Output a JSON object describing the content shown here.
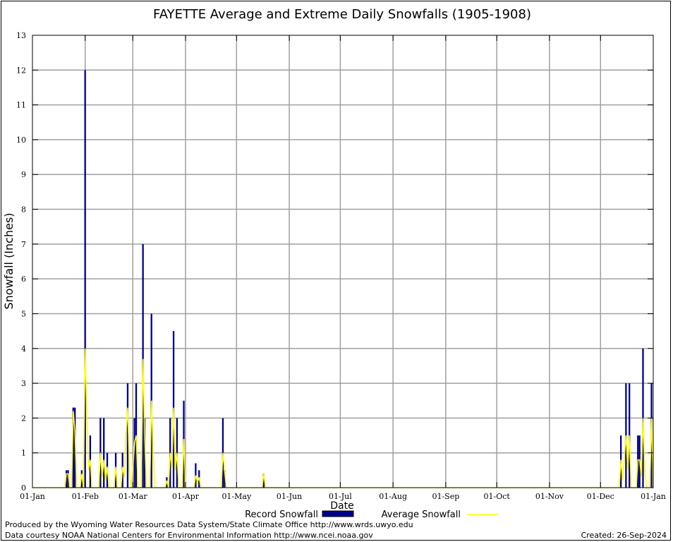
{
  "chart_data": {
    "type": "bar",
    "title": "FAYETTE Average and Extreme Daily Snowfalls (1905-1908)",
    "xlabel": "Date",
    "ylabel": "Snowfall (Inches)",
    "ylim": [
      0,
      13
    ],
    "yticks": [
      "0",
      "1",
      "2",
      "3",
      "4",
      "5",
      "6",
      "7",
      "8",
      "9",
      "10",
      "11",
      "12",
      "13"
    ],
    "xticks": [
      "01-Jan",
      "01-Feb",
      "01-Mar",
      "01-Apr",
      "01-May",
      "01-Jun",
      "01-Jul",
      "01-Aug",
      "01-Sep",
      "01-Oct",
      "01-Nov",
      "01-Dec",
      "01-Jan"
    ],
    "xtick_days": [
      1,
      32,
      60,
      91,
      121,
      152,
      182,
      213,
      244,
      274,
      305,
      335,
      366
    ],
    "xlim_days": [
      1,
      366
    ],
    "grid": true,
    "legend": "bottom-center",
    "series": [
      {
        "name": "Record Snowfall",
        "kind": "bar",
        "color": "#00008b",
        "points": [
          [
            21,
            0.5
          ],
          [
            22,
            0.5
          ],
          [
            25,
            2.3
          ],
          [
            26,
            2.3
          ],
          [
            30,
            0.5
          ],
          [
            32,
            12
          ],
          [
            35,
            1.5
          ],
          [
            41,
            2
          ],
          [
            43,
            2
          ],
          [
            45,
            1
          ],
          [
            50,
            1
          ],
          [
            54,
            1
          ],
          [
            57,
            3
          ],
          [
            61,
            2
          ],
          [
            62,
            3
          ],
          [
            66,
            7
          ],
          [
            67,
            2
          ],
          [
            71,
            5
          ],
          [
            80,
            0.3
          ],
          [
            82,
            2
          ],
          [
            84,
            4.5
          ],
          [
            86,
            2
          ],
          [
            90,
            2.5
          ],
          [
            97,
            0.7
          ],
          [
            99,
            0.5
          ],
          [
            113,
            2
          ],
          [
            114,
            0.5
          ],
          [
            137,
            0.4
          ],
          [
            347,
            1.5
          ],
          [
            350,
            3
          ],
          [
            352,
            3
          ],
          [
            357,
            1.5
          ],
          [
            358,
            1.5
          ],
          [
            360,
            4
          ],
          [
            365,
            3
          ]
        ]
      },
      {
        "name": "Average Snowfall",
        "kind": "line",
        "color": "#ffff00",
        "points": [
          [
            20,
            0
          ],
          [
            21,
            0.4
          ],
          [
            22,
            0.4
          ],
          [
            23,
            0
          ],
          [
            24,
            0
          ],
          [
            25,
            2.2
          ],
          [
            26,
            1.6
          ],
          [
            27,
            0
          ],
          [
            29,
            0
          ],
          [
            30,
            0.4
          ],
          [
            31,
            0
          ],
          [
            32,
            4
          ],
          [
            33,
            2
          ],
          [
            34,
            0.5
          ],
          [
            35,
            0.8
          ],
          [
            36,
            0
          ],
          [
            40,
            0
          ],
          [
            41,
            1
          ],
          [
            42,
            0.3
          ],
          [
            43,
            0.8
          ],
          [
            44,
            0.2
          ],
          [
            45,
            0.6
          ],
          [
            46,
            0
          ],
          [
            49,
            0
          ],
          [
            50,
            0.6
          ],
          [
            51,
            0
          ],
          [
            53,
            0
          ],
          [
            54,
            0.6
          ],
          [
            55,
            0.3
          ],
          [
            56,
            1.5
          ],
          [
            57,
            2.3
          ],
          [
            58,
            0.5
          ],
          [
            59,
            0
          ],
          [
            60,
            0.5
          ],
          [
            61,
            1.3
          ],
          [
            62,
            1.5
          ],
          [
            63,
            0
          ],
          [
            65,
            0
          ],
          [
            66,
            3.7
          ],
          [
            67,
            1.5
          ],
          [
            68,
            0
          ],
          [
            70,
            0
          ],
          [
            71,
            2.5
          ],
          [
            72,
            1
          ],
          [
            73,
            0
          ],
          [
            79,
            0
          ],
          [
            80,
            0.2
          ],
          [
            81,
            0
          ],
          [
            82,
            1
          ],
          [
            83,
            0.6
          ],
          [
            84,
            2.3
          ],
          [
            85,
            0.5
          ],
          [
            86,
            1
          ],
          [
            87,
            0
          ],
          [
            89,
            0
          ],
          [
            90,
            1.4
          ],
          [
            91,
            0
          ],
          [
            96,
            0
          ],
          [
            97,
            0.35
          ],
          [
            98,
            0.15
          ],
          [
            99,
            0.3
          ],
          [
            100,
            0
          ],
          [
            112,
            0
          ],
          [
            113,
            1
          ],
          [
            114,
            0.5
          ],
          [
            115,
            0
          ],
          [
            136,
            0
          ],
          [
            137,
            0.4
          ],
          [
            138,
            0
          ],
          [
            346,
            0
          ],
          [
            347,
            0.8
          ],
          [
            348,
            0.2
          ],
          [
            350,
            1.5
          ],
          [
            351,
            0.5
          ],
          [
            352,
            1.5
          ],
          [
            353,
            0
          ],
          [
            356,
            0
          ],
          [
            357,
            0.8
          ],
          [
            358,
            0.8
          ],
          [
            359,
            0.3
          ],
          [
            360,
            2
          ],
          [
            361,
            0.5
          ],
          [
            362,
            0
          ],
          [
            364,
            0
          ],
          [
            365,
            2
          ],
          [
            366,
            0
          ]
        ]
      }
    ]
  },
  "footer": {
    "credit1": "Produced by the Wyoming Water Resources Data System/State Climate Office http://www.wrds.uwyo.edu",
    "credit2": "Data courtesy NOAA National Centers for Environmental Information http://www.ncei.noaa.gov",
    "created": "Created:  26-Sep-2024"
  }
}
